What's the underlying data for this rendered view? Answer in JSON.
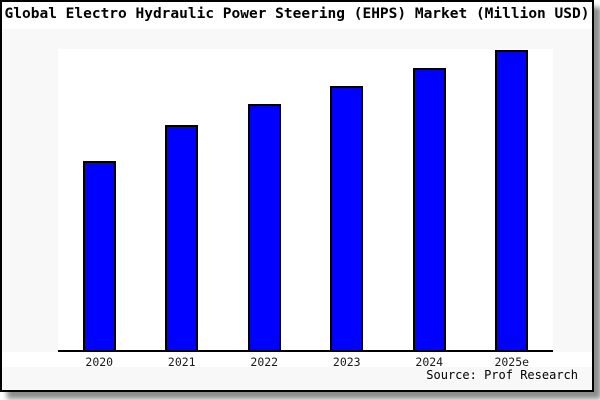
{
  "colors": {
    "bar_fill": "#0000ff",
    "bar_border": "#000000",
    "axis": "#000000",
    "plot_bg": "#ffffff",
    "margin_bg": "#f8f8f8"
  },
  "footer": {
    "source": "Source: Prof Research"
  },
  "chart_data": {
    "type": "bar",
    "title": "Global Electro Hydraulic Power Steering (EHPS) Market (Million USD)",
    "categories": [
      "2020",
      "2021",
      "2022",
      "2023",
      "2024",
      "2025e"
    ],
    "values": [
      63,
      75,
      82,
      88,
      94,
      100
    ],
    "xlabel": "",
    "ylabel": "",
    "ylim": [
      0,
      101
    ],
    "grid": false,
    "legend": null,
    "y_axis_visible": false,
    "value_note": "relative heights, no y-axis scale shown; 2025e normalized to 100"
  }
}
